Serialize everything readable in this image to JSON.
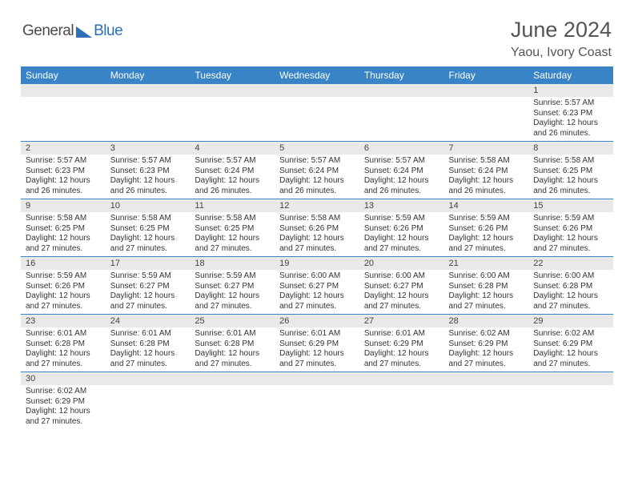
{
  "logo": {
    "part1": "General",
    "part2": "Blue",
    "tri_color": "#2d6fb5"
  },
  "title": "June 2024",
  "subtitle": "Yaou, Ivory Coast",
  "header_bg": "#3984c6",
  "daynum_bg": "#e9e9e9",
  "border_color": "#3984c6",
  "weekdays": [
    "Sunday",
    "Monday",
    "Tuesday",
    "Wednesday",
    "Thursday",
    "Friday",
    "Saturday"
  ],
  "weeks": [
    {
      "nums": [
        "",
        "",
        "",
        "",
        "",
        "",
        "1"
      ],
      "cells": [
        null,
        null,
        null,
        null,
        null,
        null,
        {
          "sunrise": "Sunrise: 5:57 AM",
          "sunset": "Sunset: 6:23 PM",
          "day1": "Daylight: 12 hours",
          "day2": "and 26 minutes."
        }
      ]
    },
    {
      "nums": [
        "2",
        "3",
        "4",
        "5",
        "6",
        "7",
        "8"
      ],
      "cells": [
        {
          "sunrise": "Sunrise: 5:57 AM",
          "sunset": "Sunset: 6:23 PM",
          "day1": "Daylight: 12 hours",
          "day2": "and 26 minutes."
        },
        {
          "sunrise": "Sunrise: 5:57 AM",
          "sunset": "Sunset: 6:23 PM",
          "day1": "Daylight: 12 hours",
          "day2": "and 26 minutes."
        },
        {
          "sunrise": "Sunrise: 5:57 AM",
          "sunset": "Sunset: 6:24 PM",
          "day1": "Daylight: 12 hours",
          "day2": "and 26 minutes."
        },
        {
          "sunrise": "Sunrise: 5:57 AM",
          "sunset": "Sunset: 6:24 PM",
          "day1": "Daylight: 12 hours",
          "day2": "and 26 minutes."
        },
        {
          "sunrise": "Sunrise: 5:57 AM",
          "sunset": "Sunset: 6:24 PM",
          "day1": "Daylight: 12 hours",
          "day2": "and 26 minutes."
        },
        {
          "sunrise": "Sunrise: 5:58 AM",
          "sunset": "Sunset: 6:24 PM",
          "day1": "Daylight: 12 hours",
          "day2": "and 26 minutes."
        },
        {
          "sunrise": "Sunrise: 5:58 AM",
          "sunset": "Sunset: 6:25 PM",
          "day1": "Daylight: 12 hours",
          "day2": "and 26 minutes."
        }
      ]
    },
    {
      "nums": [
        "9",
        "10",
        "11",
        "12",
        "13",
        "14",
        "15"
      ],
      "cells": [
        {
          "sunrise": "Sunrise: 5:58 AM",
          "sunset": "Sunset: 6:25 PM",
          "day1": "Daylight: 12 hours",
          "day2": "and 27 minutes."
        },
        {
          "sunrise": "Sunrise: 5:58 AM",
          "sunset": "Sunset: 6:25 PM",
          "day1": "Daylight: 12 hours",
          "day2": "and 27 minutes."
        },
        {
          "sunrise": "Sunrise: 5:58 AM",
          "sunset": "Sunset: 6:25 PM",
          "day1": "Daylight: 12 hours",
          "day2": "and 27 minutes."
        },
        {
          "sunrise": "Sunrise: 5:58 AM",
          "sunset": "Sunset: 6:26 PM",
          "day1": "Daylight: 12 hours",
          "day2": "and 27 minutes."
        },
        {
          "sunrise": "Sunrise: 5:59 AM",
          "sunset": "Sunset: 6:26 PM",
          "day1": "Daylight: 12 hours",
          "day2": "and 27 minutes."
        },
        {
          "sunrise": "Sunrise: 5:59 AM",
          "sunset": "Sunset: 6:26 PM",
          "day1": "Daylight: 12 hours",
          "day2": "and 27 minutes."
        },
        {
          "sunrise": "Sunrise: 5:59 AM",
          "sunset": "Sunset: 6:26 PM",
          "day1": "Daylight: 12 hours",
          "day2": "and 27 minutes."
        }
      ]
    },
    {
      "nums": [
        "16",
        "17",
        "18",
        "19",
        "20",
        "21",
        "22"
      ],
      "cells": [
        {
          "sunrise": "Sunrise: 5:59 AM",
          "sunset": "Sunset: 6:26 PM",
          "day1": "Daylight: 12 hours",
          "day2": "and 27 minutes."
        },
        {
          "sunrise": "Sunrise: 5:59 AM",
          "sunset": "Sunset: 6:27 PM",
          "day1": "Daylight: 12 hours",
          "day2": "and 27 minutes."
        },
        {
          "sunrise": "Sunrise: 5:59 AM",
          "sunset": "Sunset: 6:27 PM",
          "day1": "Daylight: 12 hours",
          "day2": "and 27 minutes."
        },
        {
          "sunrise": "Sunrise: 6:00 AM",
          "sunset": "Sunset: 6:27 PM",
          "day1": "Daylight: 12 hours",
          "day2": "and 27 minutes."
        },
        {
          "sunrise": "Sunrise: 6:00 AM",
          "sunset": "Sunset: 6:27 PM",
          "day1": "Daylight: 12 hours",
          "day2": "and 27 minutes."
        },
        {
          "sunrise": "Sunrise: 6:00 AM",
          "sunset": "Sunset: 6:28 PM",
          "day1": "Daylight: 12 hours",
          "day2": "and 27 minutes."
        },
        {
          "sunrise": "Sunrise: 6:00 AM",
          "sunset": "Sunset: 6:28 PM",
          "day1": "Daylight: 12 hours",
          "day2": "and 27 minutes."
        }
      ]
    },
    {
      "nums": [
        "23",
        "24",
        "25",
        "26",
        "27",
        "28",
        "29"
      ],
      "cells": [
        {
          "sunrise": "Sunrise: 6:01 AM",
          "sunset": "Sunset: 6:28 PM",
          "day1": "Daylight: 12 hours",
          "day2": "and 27 minutes."
        },
        {
          "sunrise": "Sunrise: 6:01 AM",
          "sunset": "Sunset: 6:28 PM",
          "day1": "Daylight: 12 hours",
          "day2": "and 27 minutes."
        },
        {
          "sunrise": "Sunrise: 6:01 AM",
          "sunset": "Sunset: 6:28 PM",
          "day1": "Daylight: 12 hours",
          "day2": "and 27 minutes."
        },
        {
          "sunrise": "Sunrise: 6:01 AM",
          "sunset": "Sunset: 6:29 PM",
          "day1": "Daylight: 12 hours",
          "day2": "and 27 minutes."
        },
        {
          "sunrise": "Sunrise: 6:01 AM",
          "sunset": "Sunset: 6:29 PM",
          "day1": "Daylight: 12 hours",
          "day2": "and 27 minutes."
        },
        {
          "sunrise": "Sunrise: 6:02 AM",
          "sunset": "Sunset: 6:29 PM",
          "day1": "Daylight: 12 hours",
          "day2": "and 27 minutes."
        },
        {
          "sunrise": "Sunrise: 6:02 AM",
          "sunset": "Sunset: 6:29 PM",
          "day1": "Daylight: 12 hours",
          "day2": "and 27 minutes."
        }
      ]
    },
    {
      "nums": [
        "30",
        "",
        "",
        "",
        "",
        "",
        ""
      ],
      "cells": [
        {
          "sunrise": "Sunrise: 6:02 AM",
          "sunset": "Sunset: 6:29 PM",
          "day1": "Daylight: 12 hours",
          "day2": "and 27 minutes."
        },
        null,
        null,
        null,
        null,
        null,
        null
      ],
      "last": true
    }
  ]
}
